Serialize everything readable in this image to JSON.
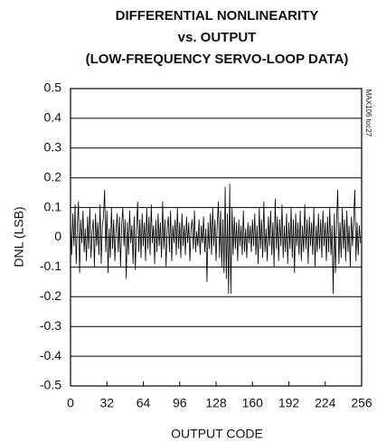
{
  "chart_data": {
    "type": "line",
    "title": [
      "DIFFERENTIAL NONLINEARITY",
      "vs. OUTPUT",
      "(LOW-FREQUENCY SERVO-LOOP DATA)"
    ],
    "x_label": "OUTPUT CODE",
    "y_label": "DNL (LSB)",
    "note": "MAX106 toc27",
    "x": [
      0,
      1,
      2,
      3,
      4,
      5,
      6,
      7,
      8,
      9,
      10,
      11,
      12,
      13,
      14,
      15,
      16,
      17,
      18,
      19,
      20,
      21,
      22,
      23,
      24,
      25,
      26,
      27,
      28,
      29,
      30,
      31,
      32,
      33,
      34,
      35,
      36,
      37,
      38,
      39,
      40,
      41,
      42,
      43,
      44,
      45,
      46,
      47,
      48,
      49,
      50,
      51,
      52,
      53,
      54,
      55,
      56,
      57,
      58,
      59,
      60,
      61,
      62,
      63,
      64,
      65,
      66,
      67,
      68,
      69,
      70,
      71,
      72,
      73,
      74,
      75,
      76,
      77,
      78,
      79,
      80,
      81,
      82,
      83,
      84,
      85,
      86,
      87,
      88,
      89,
      90,
      91,
      92,
      93,
      94,
      95,
      96,
      97,
      98,
      99,
      100,
      101,
      102,
      103,
      104,
      105,
      106,
      107,
      108,
      109,
      110,
      111,
      112,
      113,
      114,
      115,
      116,
      117,
      118,
      119,
      120,
      121,
      122,
      123,
      124,
      125,
      126,
      127,
      128,
      129,
      130,
      131,
      132,
      133,
      134,
      135,
      136,
      137,
      138,
      139,
      140,
      141,
      142,
      143,
      144,
      145,
      146,
      147,
      148,
      149,
      150,
      151,
      152,
      153,
      154,
      155,
      156,
      157,
      158,
      159,
      160,
      161,
      162,
      163,
      164,
      165,
      166,
      167,
      168,
      169,
      170,
      171,
      172,
      173,
      174,
      175,
      176,
      177,
      178,
      179,
      180,
      181,
      182,
      183,
      184,
      185,
      186,
      187,
      188,
      189,
      190,
      191,
      192,
      193,
      194,
      195,
      196,
      197,
      198,
      199,
      200,
      201,
      202,
      203,
      204,
      205,
      206,
      207,
      208,
      209,
      210,
      211,
      212,
      213,
      214,
      215,
      216,
      217,
      218,
      219,
      220,
      221,
      222,
      223,
      224,
      225,
      226,
      227,
      228,
      229,
      230,
      231,
      232,
      233,
      234,
      235,
      236,
      237,
      238,
      239,
      240,
      241,
      242,
      243,
      244,
      245,
      246,
      247,
      248,
      249,
      250,
      251,
      252,
      253,
      254,
      255
    ],
    "series": [
      {
        "color": "#000000",
        "values": [
          0.05,
          -0.06,
          0.08,
          -0.03,
          0.11,
          -0.09,
          0.04,
          0.12,
          -0.12,
          0.06,
          -0.02,
          0.09,
          -0.05,
          0.03,
          -0.08,
          0.07,
          -0.04,
          0.1,
          -0.07,
          0.02,
          0.06,
          -0.1,
          0.08,
          -0.03,
          0.05,
          -0.06,
          0.11,
          -0.09,
          0.04,
          0.07,
          0.16,
          -0.05,
          0.09,
          -0.12,
          0.03,
          -0.07,
          0.1,
          -0.04,
          0.06,
          -0.08,
          0.02,
          0.08,
          -0.05,
          0.07,
          -0.1,
          0.04,
          0.1,
          -0.03,
          0.06,
          -0.14,
          0.05,
          -0.06,
          0.09,
          -0.02,
          0.04,
          -0.09,
          0.07,
          -0.11,
          0.03,
          0.12,
          -0.05,
          0.06,
          -0.07,
          0.08,
          -0.03,
          0.05,
          -0.08,
          0.1,
          -0.04,
          0.07,
          -0.06,
          0.11,
          -0.02,
          0.04,
          -0.09,
          0.06,
          -0.05,
          0.08,
          -0.03,
          0.05,
          -0.07,
          0.12,
          -0.04,
          0.06,
          -0.1,
          0.03,
          0.07,
          -0.05,
          0.09,
          -0.08,
          0.04,
          -0.02,
          0.06,
          -0.06,
          0.1,
          -0.04,
          0.05,
          -0.07,
          0.08,
          -0.03,
          0.04,
          -0.06,
          0.07,
          -0.02,
          0.05,
          -0.08,
          0.03,
          0.06,
          -0.04,
          0.09,
          -0.05,
          0.02,
          -0.03,
          0.06,
          -0.06,
          0.04,
          -0.02,
          0.07,
          -0.05,
          0.03,
          -0.15,
          0.05,
          -0.04,
          0.08,
          -0.06,
          0.1,
          -0.03,
          0.06,
          -0.08,
          0.04,
          0.12,
          -0.07,
          0.09,
          -0.1,
          0.06,
          -0.12,
          0.17,
          -0.14,
          0.08,
          -0.19,
          0.18,
          -0.19,
          0.1,
          -0.06,
          0.07,
          -0.04,
          0.05,
          -0.08,
          0.06,
          -0.03,
          0.04,
          -0.06,
          0.09,
          -0.05,
          0.03,
          -0.07,
          0.05,
          -0.02,
          0.04,
          -0.05,
          0.06,
          -0.03,
          0.08,
          -0.06,
          0.04,
          -0.09,
          0.1,
          -0.04,
          0.06,
          -0.07,
          0.12,
          -0.05,
          0.03,
          -0.08,
          0.07,
          -0.03,
          0.09,
          -0.06,
          0.05,
          -0.1,
          0.13,
          -0.04,
          0.07,
          -0.08,
          0.06,
          -0.03,
          0.11,
          -0.07,
          0.04,
          -0.05,
          0.08,
          -0.09,
          0.05,
          -0.04,
          0.1,
          -0.07,
          0.06,
          -0.12,
          0.08,
          -0.03,
          0.05,
          -0.06,
          0.09,
          -0.08,
          0.04,
          -0.05,
          0.11,
          -0.04,
          0.06,
          -0.09,
          0.07,
          -0.03,
          0.05,
          -0.06,
          0.1,
          -0.1,
          0.04,
          -0.05,
          0.08,
          -0.04,
          0.06,
          -0.07,
          0.09,
          -0.03,
          0.05,
          -0.08,
          0.07,
          -0.05,
          0.1,
          -0.06,
          0.04,
          -0.19,
          0.08,
          -0.12,
          0.06,
          0.16,
          -0.09,
          0.05,
          -0.07,
          0.1,
          -0.04,
          0.06,
          -0.08,
          0.09,
          -0.05,
          0.04,
          -0.1,
          0.07,
          -0.03,
          0.06,
          0.16,
          -0.08,
          0.05,
          -0.06,
          0.04,
          -0.02
        ]
      }
    ],
    "xlim": [
      0,
      256
    ],
    "ylim": [
      -0.5,
      0.5
    ],
    "xticks": [
      0,
      32,
      64,
      96,
      128,
      160,
      192,
      224,
      256
    ],
    "yticks": [
      -0.5,
      -0.4,
      -0.3,
      -0.2,
      -0.1,
      0,
      0.1,
      0.2,
      0.3,
      0.4,
      0.5
    ],
    "grid": true
  }
}
